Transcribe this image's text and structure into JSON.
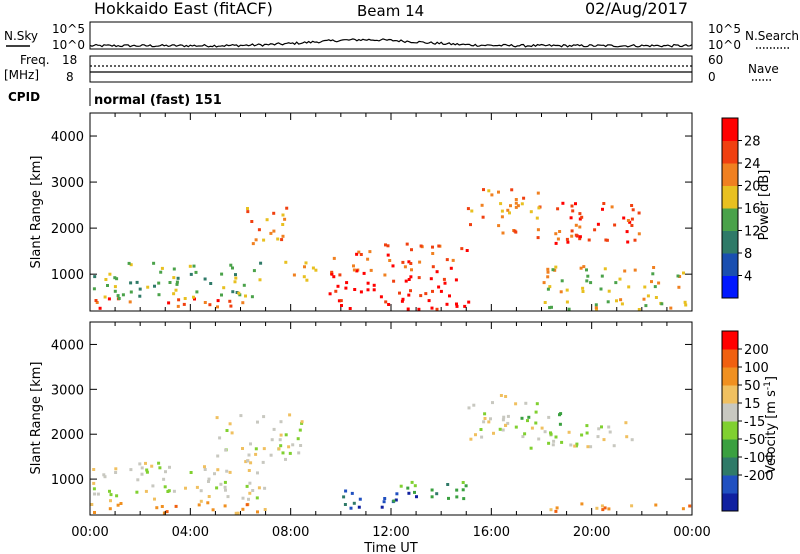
{
  "header": {
    "radar": "Hokkaido East (fitACF)",
    "beam": "Beam 14",
    "date": "02/Aug/2017"
  },
  "strip": {
    "nsky_label": "N.Sky",
    "nsearch_label": "N.Search",
    "noise_tick_high": "10^5",
    "noise_tick_low": "10^0",
    "freq_label_top": "Freq.",
    "freq_label_unit": "[MHz]",
    "freq_ticks": [
      "18",
      "8"
    ],
    "nave_label": "Nave",
    "nave_ticks": [
      "60",
      "0"
    ],
    "cpid_label": "CPID",
    "cpid_text": "normal (fast) 151"
  },
  "chart_data": [
    {
      "type": "heatmap",
      "name": "power",
      "ylabel": "Slant Range [km]",
      "ylim": [
        200,
        4500
      ],
      "yticks": [
        1000,
        2000,
        3000,
        4000
      ],
      "x_ticks": [
        "00:00",
        "04:00",
        "08:00",
        "12:00",
        "16:00",
        "20:00",
        "00:00"
      ],
      "colorbar": {
        "label": "Power [dB]",
        "ticks": [
          "4",
          "8",
          "12",
          "16",
          "20",
          "24",
          "28"
        ],
        "colors": [
          "#0018ff",
          "#1a4fb0",
          "#2f7a68",
          "#4aa24a",
          "#e8c020",
          "#f08020",
          "#f04010",
          "#ff0000"
        ]
      },
      "bands": [
        {
          "t0": 0.0,
          "t1": 7.0,
          "r0": 250,
          "r1": 500,
          "c": 6
        },
        {
          "t0": 0.0,
          "t1": 7.0,
          "r0": 500,
          "r1": 1300,
          "c": 3
        },
        {
          "t0": 6.2,
          "t1": 7.8,
          "r0": 1500,
          "r1": 2500,
          "c": 5
        },
        {
          "t0": 7.5,
          "t1": 9.0,
          "r0": 800,
          "r1": 1300,
          "c": 4
        },
        {
          "t0": 9.5,
          "t1": 15.5,
          "r0": 250,
          "r1": 1000,
          "c": 7
        },
        {
          "t0": 9.5,
          "t1": 15.0,
          "r0": 1000,
          "r1": 1700,
          "c": 6
        },
        {
          "t0": 15.0,
          "t1": 18.0,
          "r0": 1900,
          "r1": 2900,
          "c": 5
        },
        {
          "t0": 17.5,
          "t1": 22.0,
          "r0": 1700,
          "r1": 2600,
          "c": 6
        },
        {
          "t0": 18.0,
          "t1": 24.0,
          "r0": 250,
          "r1": 1200,
          "c": 4
        }
      ]
    },
    {
      "type": "heatmap",
      "name": "velocity",
      "ylabel": "Slant Range [km]",
      "ylim": [
        200,
        4500
      ],
      "yticks": [
        1000,
        2000,
        3000,
        4000
      ],
      "x_ticks": [
        "00:00",
        "04:00",
        "08:00",
        "12:00",
        "16:00",
        "20:00",
        "00:00"
      ],
      "xlabel": "Time UT",
      "colorbar": {
        "label": "Velocity [m s^-1]",
        "ticks": [
          "200",
          "100",
          "50",
          "15",
          "-15",
          "-50",
          "-100",
          "-200"
        ],
        "colors": [
          "#1020a0",
          "#2050c0",
          "#2f7a68",
          "#3aa040",
          "#80d030",
          "#c8c8c0",
          "#f0c060",
          "#f09020",
          "#f06010",
          "#ff0000"
        ]
      },
      "bands": [
        {
          "t0": 0.0,
          "t1": 7.0,
          "r0": 250,
          "r1": 550,
          "c": 7
        },
        {
          "t0": 0.0,
          "t1": 7.0,
          "r0": 550,
          "r1": 1400,
          "c": 5
        },
        {
          "t0": 5.0,
          "t1": 8.5,
          "r0": 1400,
          "r1": 2500,
          "c": 5
        },
        {
          "t0": 10.0,
          "t1": 13.0,
          "r0": 200,
          "r1": 800,
          "c": 1
        },
        {
          "t0": 12.0,
          "t1": 15.0,
          "r0": 500,
          "r1": 1000,
          "c": 3
        },
        {
          "t0": 15.0,
          "t1": 18.0,
          "r0": 1900,
          "r1": 2900,
          "c": 5
        },
        {
          "t0": 17.0,
          "t1": 19.0,
          "r0": 1700,
          "r1": 2500,
          "c": 4
        },
        {
          "t0": 19.0,
          "t1": 22.0,
          "r0": 1700,
          "r1": 2300,
          "c": 5
        },
        {
          "t0": 18.0,
          "t1": 24.0,
          "r0": 200,
          "r1": 500,
          "c": 7
        }
      ]
    }
  ]
}
